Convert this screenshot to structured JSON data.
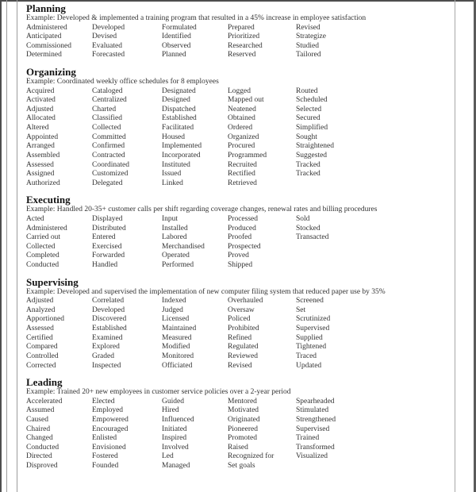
{
  "page": {
    "background": "#ffffff",
    "text_color": "#333333",
    "heading_color": "#141414",
    "border_color": "#9b9b9b",
    "edge_color": "#4d4d4d"
  },
  "sections": [
    {
      "title": "Planning",
      "example": "Example: Developed & implemented a training program that resulted in a 45% increase in employee satisfaction",
      "rows": [
        [
          "Administered",
          "Developed",
          "Formulated",
          "Prepared",
          "Revised"
        ],
        [
          "Anticipated",
          "Devised",
          "Identified",
          "Prioritized",
          "Strategize"
        ],
        [
          "Commissioned",
          "Evaluated",
          "Observed",
          "Researched",
          "Studied"
        ],
        [
          "Determined",
          "Forecasted",
          "Planned",
          "Reserved",
          "Tailored"
        ]
      ]
    },
    {
      "title": "Organizing",
      "example": "Example: Coordinated weekly office schedules for 8 employees",
      "rows": [
        [
          "Acquired",
          "Cataloged",
          "Designated",
          "Logged",
          "Routed"
        ],
        [
          "Activated",
          "Centralized",
          "Designed",
          "Mapped out",
          "Scheduled"
        ],
        [
          "Adjusted",
          "Charted",
          "Dispatched",
          "Neatened",
          "Selected"
        ],
        [
          "Allocated",
          "Classified",
          "Established",
          "Obtained",
          "Secured"
        ],
        [
          "Altered",
          "Collected",
          "Facilitated",
          "Ordered",
          "Simplified"
        ],
        [
          "Appointed",
          "Committed",
          "Housed",
          "Organized",
          "Sought"
        ],
        [
          "Arranged",
          "Confirmed",
          "Implemented",
          "Procured",
          "Straightened"
        ],
        [
          "Assembled",
          "Contracted",
          "Incorporated",
          "Programmed",
          "Suggested"
        ],
        [
          "Assessed",
          "Coordinated",
          "Instituted",
          "Recruited",
          "Tracked"
        ],
        [
          "Assigned",
          "Customized",
          "Issued",
          "Rectified",
          "Tracked"
        ],
        [
          "Authorized",
          "Delegated",
          "Linked",
          "Retrieved",
          ""
        ]
      ]
    },
    {
      "title": "Executing",
      "example": "Example: Handled 20-35+ customer calls per shift regarding coverage changes, renewal rates and billing procedures",
      "rows": [
        [
          "Acted",
          "Displayed",
          "Input",
          "Processed",
          "Sold"
        ],
        [
          "Administered",
          "Distributed",
          "Installed",
          "Produced",
          "Stocked"
        ],
        [
          "Carried out",
          "Entered",
          "Labored",
          "Proofed",
          "Transacted"
        ],
        [
          "Collected",
          "Exercised",
          "Merchandised",
          "Prospected",
          ""
        ],
        [
          "Completed",
          "Forwarded",
          "Operated",
          "Proved",
          ""
        ],
        [
          "Conducted",
          "Handled",
          "Performed",
          "Shipped",
          ""
        ]
      ]
    },
    {
      "title": "Supervising",
      "example": "Example: Developed and supervised the implementation of new computer filing system that reduced paper use by 35%",
      "rows": [
        [
          "Adjusted",
          "Correlated",
          "Indexed",
          "Overhauled",
          "Screened"
        ],
        [
          "Analyzed",
          "Developed",
          "Judged",
          "Oversaw",
          "Set"
        ],
        [
          "Apportioned",
          "Discovered",
          "Licensed",
          "Policed",
          "Scrutinized"
        ],
        [
          "Assessed",
          "Established",
          "Maintained",
          "Prohibited",
          "Supervised"
        ],
        [
          "Certified",
          "Examined",
          "Measured",
          "Refined",
          "Supplied"
        ],
        [
          "Compared",
          "Explored",
          "Modified",
          "Regulated",
          "Tightened"
        ],
        [
          "Controlled",
          "Graded",
          "Monitored",
          "Reviewed",
          "Traced"
        ],
        [
          "Corrected",
          "Inspected",
          "Officiated",
          "Revised",
          "Updated"
        ]
      ]
    },
    {
      "title": "Leading",
      "example": "Example: Trained 20+ new employees in customer service policies over a 2-year period",
      "rows": [
        [
          "Accelerated",
          "Elected",
          "Guided",
          "Mentored",
          "Spearheaded"
        ],
        [
          "Assumed",
          "Employed",
          "Hired",
          "Motivated",
          "Stimulated"
        ],
        [
          "Caused",
          "Empowered",
          "Influenced",
          "Originated",
          "Strengthened"
        ],
        [
          "Chaired",
          "Encouraged",
          "Initiated",
          "Pioneered",
          "Supervised"
        ],
        [
          "Changed",
          "Enlisted",
          "Inspired",
          "Promoted",
          "Trained"
        ],
        [
          "Conducted",
          "Envisioned",
          "Involved",
          "Raised",
          "Transformed"
        ],
        [
          "Directed",
          "Fostered",
          "Led",
          "Recognized for",
          "Visualized"
        ],
        [
          "Disproved",
          "Founded",
          "Managed",
          "Set goals",
          ""
        ]
      ]
    }
  ]
}
